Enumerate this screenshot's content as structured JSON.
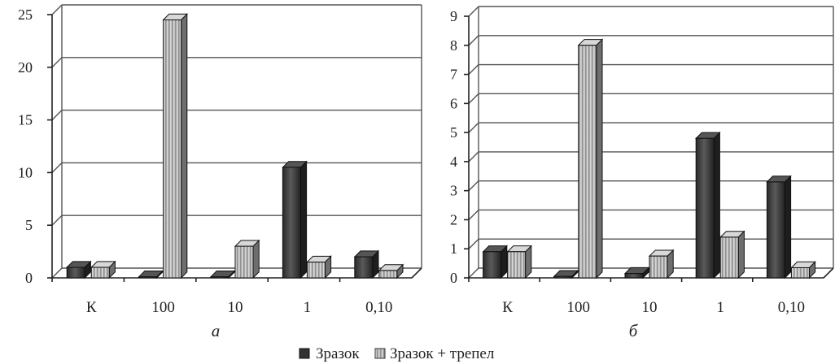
{
  "legend": {
    "items": [
      "Зразок",
      "Зразок + трепел"
    ]
  },
  "colors": {
    "dark": "#3c3c3c",
    "light": "#bdbdbd",
    "grid": "#555555"
  },
  "chart_data": [
    {
      "type": "bar",
      "subtitle": "а",
      "categories": [
        "К",
        "100",
        "10",
        "1",
        "0,10"
      ],
      "ylim": [
        0,
        25
      ],
      "yticks": [
        0,
        5,
        10,
        15,
        20,
        25
      ],
      "ytick_labels": [
        "0",
        "5",
        "10",
        "15",
        "20",
        "25"
      ],
      "grid": true,
      "legend": "bottom-center",
      "series": [
        {
          "name": "Зразок",
          "values": [
            1.0,
            0.1,
            0.1,
            10.5,
            2.0
          ]
        },
        {
          "name": "Зразок + трепел",
          "values": [
            1.0,
            24.5,
            3.0,
            1.5,
            0.7
          ]
        }
      ]
    },
    {
      "type": "bar",
      "subtitle": "б",
      "categories": [
        "К",
        "100",
        "10",
        "1",
        "0,10"
      ],
      "ylim": [
        0,
        9
      ],
      "yticks": [
        0,
        1,
        2,
        3,
        4,
        5,
        6,
        7,
        8,
        9
      ],
      "ytick_labels": [
        "0",
        "1",
        "2",
        "3",
        "4",
        "5",
        "6",
        "7",
        "8",
        "9"
      ],
      "grid": true,
      "legend": "bottom-center",
      "series": [
        {
          "name": "Зразок",
          "values": [
            0.9,
            0.05,
            0.15,
            4.8,
            3.3
          ]
        },
        {
          "name": "Зразок + трепел",
          "values": [
            0.9,
            8.0,
            0.75,
            1.4,
            0.35
          ]
        }
      ]
    }
  ]
}
